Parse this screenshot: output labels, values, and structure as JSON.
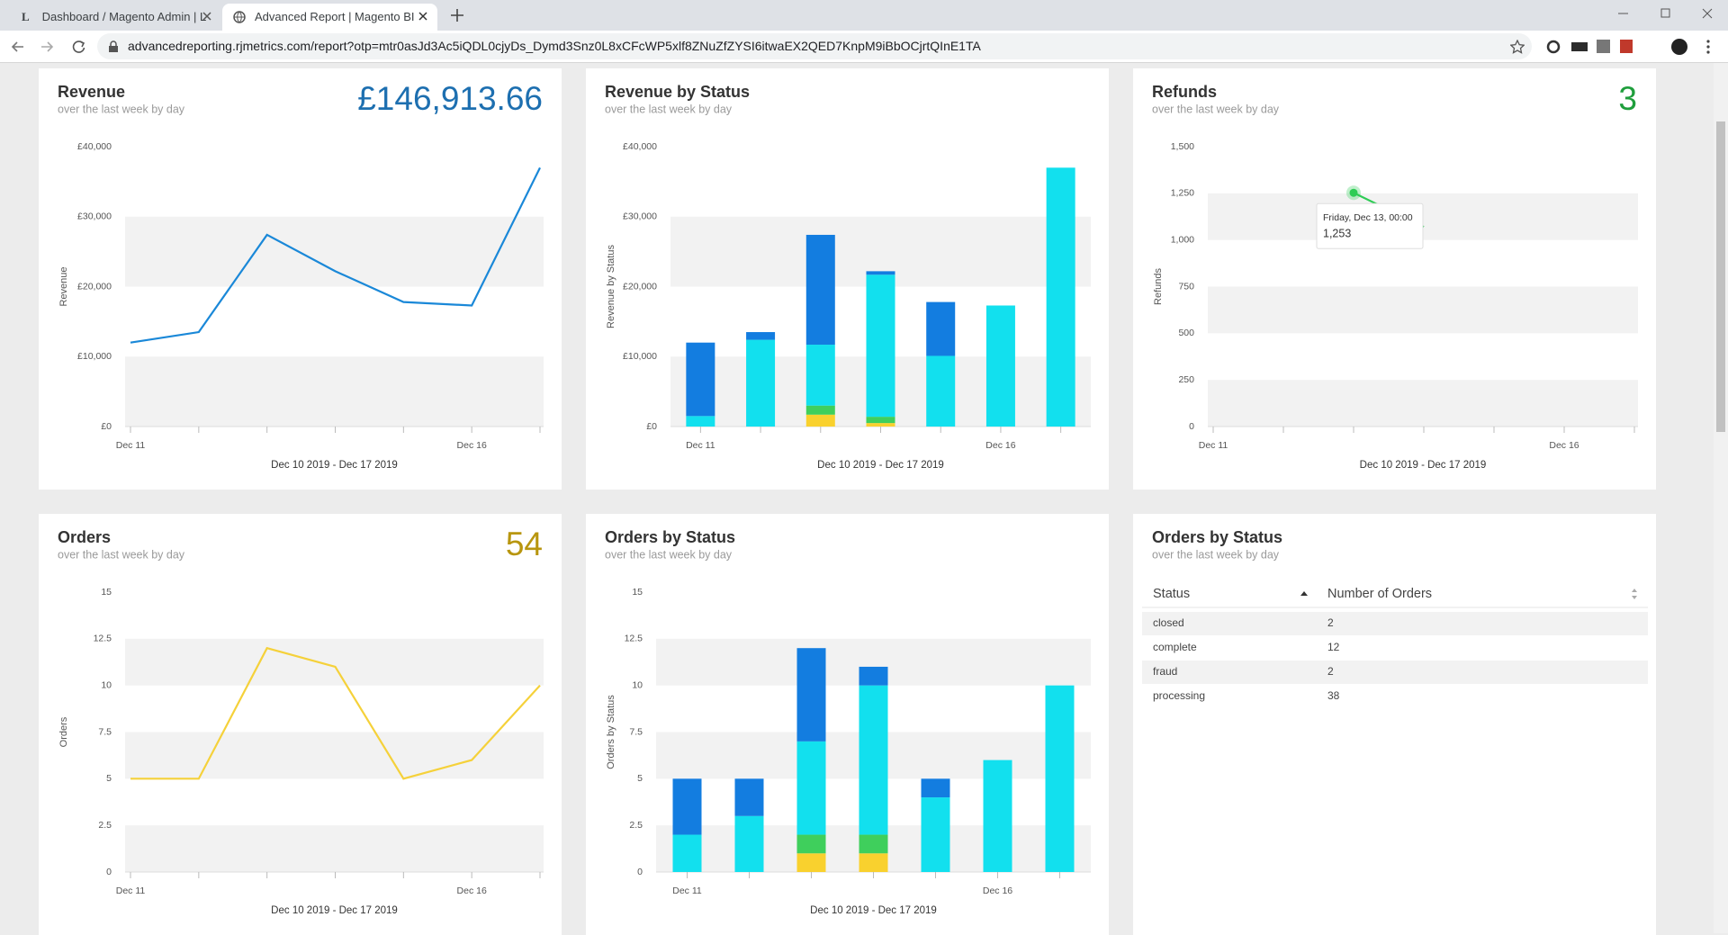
{
  "browser": {
    "tabs": [
      "Dashboard / Magento Admin | L",
      "Advanced Report | Magento BI"
    ],
    "url": "advancedreporting.rjmetrics.com/report?otp=mtr0asJd3Ac5iQDL0cjyDs_Dymd3Snz0L8xCFcWP5xlf8ZNuZfZYSI6itwaEX2QED7KnpM9iBbOCjrtQInE1TA"
  },
  "chart_data": [
    {
      "type": "line",
      "title": "Revenue",
      "subtitle": "over the last week by day",
      "kpi": {
        "value": 146913.66,
        "label": "£146,913.66"
      },
      "kpi_color": "#1d6fb0",
      "categories": [
        "Dec 11",
        null,
        null,
        null,
        null,
        "Dec 16",
        null
      ],
      "values": [
        12000,
        13500,
        27400,
        22200,
        17800,
        17300,
        37000
      ],
      "color": "#1a88d8",
      "ylabel": "Revenue",
      "xlabel": "Dec 10 2019 - Dec 17 2019",
      "ylim": [
        0,
        40000
      ],
      "yticks": [
        {
          "value": 0,
          "label": "£0"
        },
        {
          "value": 10000,
          "label": "£10,000"
        },
        {
          "value": 20000,
          "label": "£20,000"
        },
        {
          "value": 30000,
          "label": "£30,000"
        },
        {
          "value": 40000,
          "label": "£40,000"
        }
      ],
      "grid": "bands"
    },
    {
      "type": "bar",
      "stacked": true,
      "title": "Revenue by Status",
      "subtitle": "over the last week by day",
      "categories": [
        "Dec 11",
        null,
        null,
        null,
        null,
        "Dec 16",
        null
      ],
      "series": [
        {
          "color": "#f9d12e",
          "values": [
            0,
            0,
            1700,
            500,
            0,
            0,
            0
          ]
        },
        {
          "color": "#3fcf5c",
          "values": [
            0,
            0,
            1300,
            900,
            0,
            0,
            0
          ]
        },
        {
          "color": "#12e0ee",
          "values": [
            1500,
            12400,
            8700,
            20300,
            10100,
            17300,
            37000
          ]
        },
        {
          "color": "#137de0",
          "values": [
            10500,
            1100,
            15700,
            500,
            7700,
            0,
            0
          ]
        }
      ],
      "ylabel": "Revenue by Status",
      "xlabel": "Dec 10 2019 - Dec 17 2019",
      "ylim": [
        0,
        40000
      ],
      "yticks": [
        {
          "value": 0,
          "label": "£0"
        },
        {
          "value": 10000,
          "label": "£10,000"
        },
        {
          "value": 20000,
          "label": "£20,000"
        },
        {
          "value": 30000,
          "label": "£30,000"
        },
        {
          "value": 40000,
          "label": "£40,000"
        }
      ],
      "grid": "bands"
    },
    {
      "type": "line",
      "title": "Refunds",
      "subtitle": "over the last week by day",
      "kpi": 3,
      "kpi_color": "#1f9e3c",
      "categories": [
        "Dec 11",
        null,
        null,
        null,
        null,
        "Dec 16",
        null
      ],
      "values": [
        null,
        null,
        1253,
        1070,
        null,
        null,
        null
      ],
      "color": "#2ecc55",
      "ylabel": "Refunds",
      "xlabel": "Dec 10 2019 - Dec 17 2019",
      "ylim": [
        0,
        1500
      ],
      "yticks": [
        0,
        250,
        500,
        750,
        {
          "value": 1000,
          "label": "1,000"
        },
        {
          "value": 1250,
          "label": "1,250"
        },
        {
          "value": 1500,
          "label": "1,500"
        }
      ],
      "grid": "bands",
      "tooltip": {
        "heading": "Friday, Dec 13, 00:00",
        "value": {
          "value": 1253,
          "label": "1,253"
        }
      }
    },
    {
      "type": "line",
      "title": "Orders",
      "subtitle": "over the last week by day",
      "kpi": 54,
      "kpi_color": "#b8960f",
      "categories": [
        "Dec 11",
        null,
        null,
        null,
        null,
        "Dec 16",
        null
      ],
      "values": [
        5,
        5,
        12,
        11,
        5,
        6,
        10
      ],
      "color": "#f5d13a",
      "ylabel": "Orders",
      "xlabel": "Dec 10 2019 - Dec 17 2019",
      "ylim": [
        0,
        15
      ],
      "yticks": [
        0,
        2.5,
        5,
        7.5,
        10,
        12.5,
        15
      ],
      "grid": "bands"
    },
    {
      "type": "bar",
      "stacked": true,
      "title": "Orders by Status",
      "subtitle": "over the last week by day",
      "categories": [
        "Dec 11",
        null,
        null,
        null,
        null,
        "Dec 16",
        null
      ],
      "series": [
        {
          "color": "#f9d12e",
          "values": [
            0,
            0,
            1,
            1,
            0,
            0,
            0
          ]
        },
        {
          "color": "#3fcf5c",
          "values": [
            0,
            0,
            1,
            1,
            0,
            0,
            0
          ]
        },
        {
          "color": "#12e0ee",
          "values": [
            2,
            3,
            5,
            8,
            4,
            6,
            10
          ]
        },
        {
          "color": "#137de0",
          "values": [
            3,
            2,
            5,
            1,
            1,
            0,
            0
          ]
        }
      ],
      "ylabel": "Orders by Status",
      "xlabel": "Dec 10 2019 - Dec 17 2019",
      "ylim": [
        0,
        15
      ],
      "yticks": [
        0,
        2.5,
        5,
        7.5,
        10,
        12.5,
        15
      ],
      "grid": "bands"
    }
  ],
  "table": {
    "title": "Orders by Status",
    "subtitle": "over the last week by day",
    "columns": [
      "Status",
      "Number of Orders"
    ],
    "rows": [
      [
        "closed",
        2
      ],
      [
        "complete",
        12
      ],
      [
        "fraud",
        2
      ],
      [
        "processing",
        38
      ]
    ]
  }
}
